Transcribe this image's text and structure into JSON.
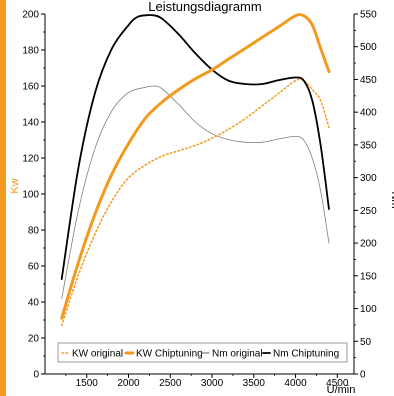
{
  "chart_data": {
    "type": "line",
    "title": "Leistungsdiagramm",
    "xlabel": "U/min",
    "ylabel_left": "Kw",
    "ylabel_right": "Nm",
    "xlim": [
      1000,
      4700
    ],
    "ylim_left": [
      0,
      200
    ],
    "ylim_right": [
      0,
      550
    ],
    "x_ticks": [
      "1500",
      "2000",
      "2500",
      "3000",
      "3500",
      "4000",
      "4500"
    ],
    "y_ticks_left": [
      "0",
      "20",
      "40",
      "60",
      "80",
      "100",
      "120",
      "140",
      "160",
      "180",
      "200"
    ],
    "y_ticks_right": [
      "0",
      "50",
      "100",
      "150",
      "200",
      "250",
      "300",
      "350",
      "400",
      "450",
      "500",
      "550"
    ],
    "legend_placement": "bottom-right",
    "grid": false,
    "colors": {
      "orange": "#f39a1e",
      "black": "#000000",
      "grey": "#808080"
    },
    "series": [
      {
        "name": "KW original",
        "axis": "left",
        "style": "dotted",
        "color": "#f39a1e",
        "points": [
          [
            1200,
            27
          ],
          [
            1400,
            55
          ],
          [
            1600,
            78
          ],
          [
            1800,
            96
          ],
          [
            2000,
            109
          ],
          [
            2200,
            116
          ],
          [
            2400,
            121
          ],
          [
            2600,
            124
          ],
          [
            2800,
            127
          ],
          [
            3000,
            131
          ],
          [
            3200,
            136
          ],
          [
            3400,
            142
          ],
          [
            3600,
            149
          ],
          [
            3800,
            156
          ],
          [
            4000,
            163
          ],
          [
            4100,
            163
          ],
          [
            4200,
            158
          ],
          [
            4300,
            152
          ],
          [
            4400,
            137
          ]
        ]
      },
      {
        "name": "KW Chiptuning",
        "axis": "left",
        "style": "solid-thick",
        "color": "#f39a1e",
        "points": [
          [
            1200,
            31
          ],
          [
            1400,
            62
          ],
          [
            1600,
            89
          ],
          [
            1800,
            111
          ],
          [
            2000,
            128
          ],
          [
            2200,
            142
          ],
          [
            2400,
            151
          ],
          [
            2600,
            158
          ],
          [
            2800,
            164
          ],
          [
            3000,
            169
          ],
          [
            3200,
            175
          ],
          [
            3400,
            181
          ],
          [
            3600,
            187
          ],
          [
            3800,
            193
          ],
          [
            4000,
            199
          ],
          [
            4100,
            199
          ],
          [
            4200,
            194
          ],
          [
            4300,
            181
          ],
          [
            4400,
            168
          ]
        ]
      },
      {
        "name": "Nm original",
        "axis": "right",
        "style": "solid-thin",
        "color": "#808080",
        "points": [
          [
            1200,
            115
          ],
          [
            1400,
            250
          ],
          [
            1600,
            345
          ],
          [
            1800,
            402
          ],
          [
            2000,
            430
          ],
          [
            2200,
            438
          ],
          [
            2300,
            440
          ],
          [
            2400,
            436
          ],
          [
            2600,
            412
          ],
          [
            2800,
            385
          ],
          [
            3000,
            367
          ],
          [
            3200,
            358
          ],
          [
            3400,
            354
          ],
          [
            3600,
            354
          ],
          [
            3800,
            359
          ],
          [
            4000,
            363
          ],
          [
            4100,
            357
          ],
          [
            4200,
            330
          ],
          [
            4300,
            280
          ],
          [
            4400,
            200
          ]
        ]
      },
      {
        "name": "Nm Chiptuning",
        "axis": "right",
        "style": "solid",
        "color": "#000000",
        "points": [
          [
            1200,
            145
          ],
          [
            1400,
            315
          ],
          [
            1600,
            430
          ],
          [
            1800,
            497
          ],
          [
            2000,
            533
          ],
          [
            2100,
            545
          ],
          [
            2200,
            548
          ],
          [
            2300,
            548
          ],
          [
            2400,
            543
          ],
          [
            2600,
            519
          ],
          [
            2800,
            490
          ],
          [
            3000,
            465
          ],
          [
            3200,
            448
          ],
          [
            3400,
            443
          ],
          [
            3600,
            443
          ],
          [
            3800,
            449
          ],
          [
            4000,
            453
          ],
          [
            4100,
            448
          ],
          [
            4200,
            418
          ],
          [
            4300,
            350
          ],
          [
            4400,
            252
          ]
        ]
      }
    ]
  }
}
